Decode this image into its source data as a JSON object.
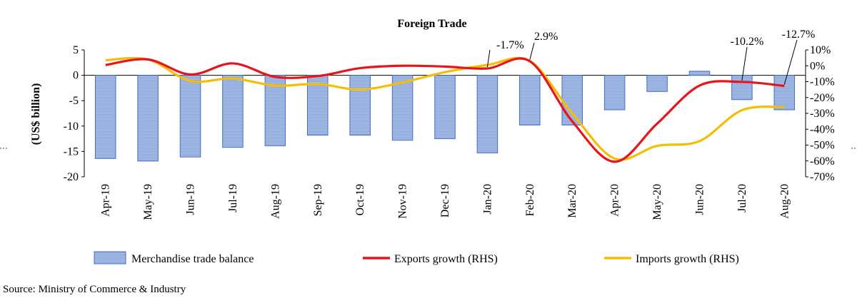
{
  "chart_data": {
    "type": "bar+line",
    "title": "Foreign Trade",
    "categories": [
      "Apr-19",
      "May-19",
      "Jun-19",
      "Jul-19",
      "Aug-19",
      "Sep-19",
      "Oct-19",
      "Nov-19",
      "Dec-19",
      "Jan-20",
      "Feb-20",
      "Mar-20",
      "Apr-20",
      "May-20",
      "Jun-20",
      "Jul-20",
      "Aug-20"
    ],
    "y_left": {
      "label": "(US$ billion)",
      "min": -20,
      "max": 5,
      "ticks": [
        5,
        0,
        -5,
        -10,
        -15,
        -20
      ]
    },
    "y_right": {
      "label": "",
      "min": -70,
      "max": 10,
      "ticks": [
        10,
        0,
        -10,
        -20,
        -30,
        -40,
        -50,
        -60,
        -70
      ],
      "tick_labels": [
        "10%",
        "0%",
        "-10%",
        "-20%",
        "-30%",
        "-40%",
        "-50%",
        "-60%",
        "-70%"
      ]
    },
    "series": [
      {
        "name": "Merchandise trade balance",
        "type": "bar",
        "axis": "left",
        "color": "#9db5e0",
        "values": [
          -16.4,
          -16.9,
          -16.1,
          -14.2,
          -13.9,
          -11.8,
          -11.8,
          -12.8,
          -12.5,
          -15.3,
          -9.8,
          -9.8,
          -6.8,
          -3.2,
          0.8,
          -4.8,
          -6.8
        ]
      },
      {
        "name": "Exports growth (RHS)",
        "type": "line",
        "axis": "right",
        "color": "#e8141b",
        "values": [
          0.5,
          4.0,
          -5.5,
          1.5,
          -7.0,
          -6.5,
          -1.5,
          0.0,
          -0.5,
          -1.7,
          2.9,
          -35.0,
          -60.5,
          -36.5,
          -12.5,
          -10.2,
          -12.7
        ]
      },
      {
        "name": "Imports  growth (RHS)",
        "type": "line",
        "axis": "right",
        "color": "#f5bd06",
        "values": [
          3.5,
          4.0,
          -9.5,
          -8.0,
          -12.5,
          -11.5,
          -15.0,
          -10.5,
          -4.0,
          0.5,
          3.0,
          -30.0,
          -58.5,
          -50.5,
          -47.5,
          -28.0,
          -26.0
        ]
      }
    ],
    "annotations": [
      {
        "text": "-1.7%",
        "series": "Exports growth (RHS)",
        "category": "Jan-20"
      },
      {
        "text": "2.9%",
        "series": "Exports growth (RHS)",
        "category": "Feb-20"
      },
      {
        "text": "-10.2%",
        "series": "Exports growth (RHS)",
        "category": "Jul-20"
      },
      {
        "text": "-12.7%",
        "series": "Exports growth (RHS)",
        "category": "Aug-20"
      }
    ],
    "legend_position": "bottom"
  },
  "source": "Source: Ministry of Commerce & Industry"
}
